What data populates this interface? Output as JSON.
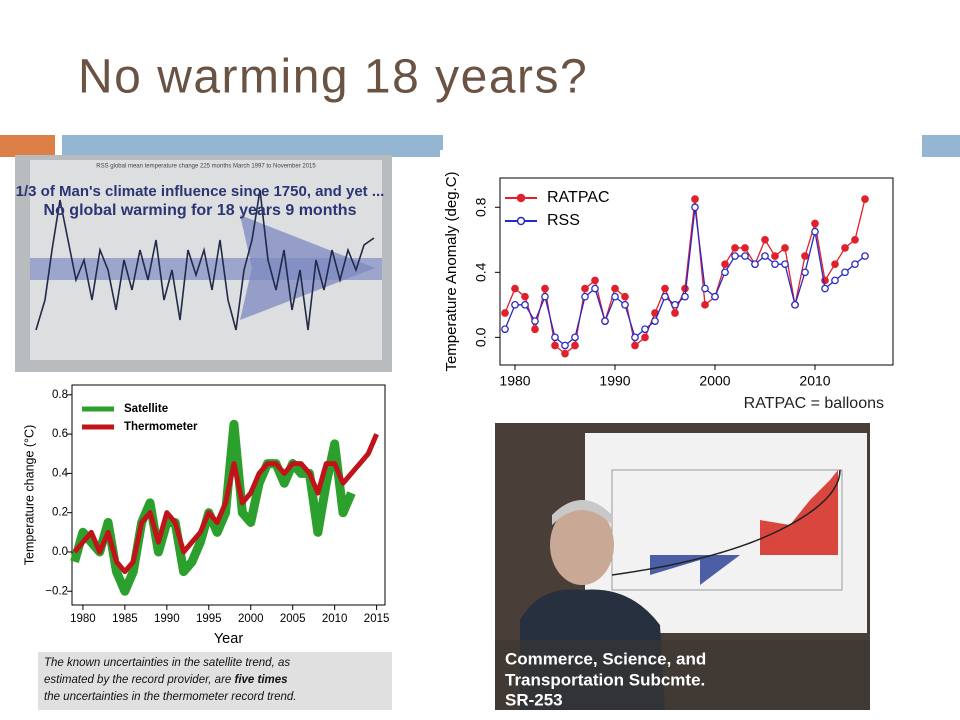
{
  "slide": {
    "title": "No warming 18 years?",
    "caption": "RATPAC = balloons"
  },
  "photo_rss": {
    "header": "RSS global mean temperature change 225 months March 1997 to November 2015",
    "headline_1": "1/3 of Man's climate influence since 1750, and yet ...",
    "headline_2": "No global warming for 18 years 9 months"
  },
  "photo_hearing": {
    "lines": [
      "Commerce, Science, and",
      "Transportation Subcmte.",
      "SR-253"
    ]
  },
  "note": [
    "The known uncertainties in the satellite trend, as",
    "estimated by the record provider, are ",
    "five times",
    "the uncertainties in the thermometer record trend."
  ],
  "chart_data": [
    {
      "type": "line",
      "ylabel": "Temperature Anomaly (deg.C)",
      "legend": "top-left",
      "grid": false,
      "x": [
        1979,
        1980,
        1981,
        1982,
        1983,
        1984,
        1985,
        1986,
        1987,
        1988,
        1989,
        1990,
        1991,
        1992,
        1993,
        1994,
        1995,
        1996,
        1997,
        1998,
        1999,
        2000,
        2001,
        2002,
        2003,
        2004,
        2005,
        2006,
        2007,
        2008,
        2009,
        2010,
        2011,
        2012,
        2013,
        2014,
        2015
      ],
      "xlim": [
        1978.5,
        2017.8
      ],
      "xticks": [
        1980,
        1990,
        2000,
        2010
      ],
      "ylim": [
        -0.17,
        0.98
      ],
      "yticks": [
        {
          "value": 0,
          "label": "0.0"
        },
        0.4,
        0.8
      ],
      "series": [
        {
          "name": "RATPAC",
          "color": "#e0202a",
          "marker": "filled",
          "values": [
            0.15,
            0.3,
            0.25,
            0.05,
            0.3,
            -0.05,
            -0.1,
            -0.05,
            0.3,
            0.35,
            0.1,
            0.3,
            0.25,
            -0.05,
            0.0,
            0.15,
            0.3,
            0.15,
            0.3,
            0.85,
            0.2,
            0.25,
            0.45,
            0.55,
            0.55,
            0.45,
            0.6,
            0.5,
            0.55,
            0.2,
            0.5,
            0.7,
            0.35,
            0.45,
            0.55,
            0.6,
            0.85
          ]
        },
        {
          "name": "RSS",
          "color": "#2828c8",
          "marker": "open",
          "values": [
            0.05,
            0.2,
            0.2,
            0.1,
            0.25,
            0.0,
            -0.05,
            0.0,
            0.25,
            0.3,
            0.1,
            0.25,
            0.2,
            0.0,
            0.05,
            0.1,
            0.25,
            0.2,
            0.25,
            0.8,
            0.3,
            0.25,
            0.4,
            0.5,
            0.5,
            0.45,
            0.5,
            0.45,
            0.45,
            0.2,
            0.4,
            0.65,
            0.3,
            0.35,
            0.4,
            0.45,
            0.5
          ]
        }
      ]
    },
    {
      "type": "line",
      "xlabel": "Year",
      "ylabel": "Temperature change (°C)",
      "legend": "top-left",
      "grid": false,
      "x": [
        1979,
        1980,
        1981,
        1982,
        1983,
        1984,
        1985,
        1986,
        1987,
        1988,
        1989,
        1990,
        1991,
        1992,
        1993,
        1994,
        1995,
        1996,
        1997,
        1998,
        1999,
        2000,
        2001,
        2002,
        2003,
        2004,
        2005,
        2006,
        2007,
        2008,
        2009,
        2010,
        2011,
        2012,
        2013,
        2014,
        2015
      ],
      "xlim": [
        1978.7,
        2016
      ],
      "xticks": [
        1980,
        1985,
        1990,
        1995,
        2000,
        2005,
        2010,
        2015
      ],
      "ylim": [
        -0.27,
        0.85
      ],
      "yticks": [
        {
          "value": -0.2,
          "label": "−0.2"
        },
        {
          "value": 0,
          "label": "0.0"
        },
        0.2,
        0.4,
        0.6,
        0.8
      ],
      "series": [
        {
          "name": "Satellite",
          "color": "#2ca02c",
          "width": 9,
          "values": [
            -0.05,
            0.1,
            0.05,
            0.0,
            0.15,
            -0.1,
            -0.2,
            -0.1,
            0.15,
            0.25,
            0.0,
            0.15,
            0.15,
            -0.1,
            -0.05,
            0.05,
            0.2,
            0.1,
            0.2,
            0.65,
            0.2,
            0.15,
            0.35,
            0.45,
            0.45,
            0.35,
            0.45,
            0.4,
            0.4,
            0.1,
            0.35,
            0.55,
            0.2,
            0.3,
            null,
            null,
            null
          ]
        },
        {
          "name": "Thermometer",
          "color": "#c0141a",
          "width": 5,
          "values": [
            0.0,
            0.05,
            0.1,
            0.0,
            0.1,
            -0.05,
            -0.1,
            -0.05,
            0.15,
            0.2,
            0.05,
            0.2,
            0.15,
            0.0,
            0.05,
            0.1,
            0.2,
            0.15,
            0.25,
            0.45,
            0.25,
            0.3,
            0.4,
            0.45,
            0.45,
            0.4,
            0.45,
            0.45,
            0.4,
            0.3,
            0.45,
            0.45,
            0.35,
            0.4,
            0.45,
            0.5,
            0.6
          ]
        }
      ]
    }
  ]
}
